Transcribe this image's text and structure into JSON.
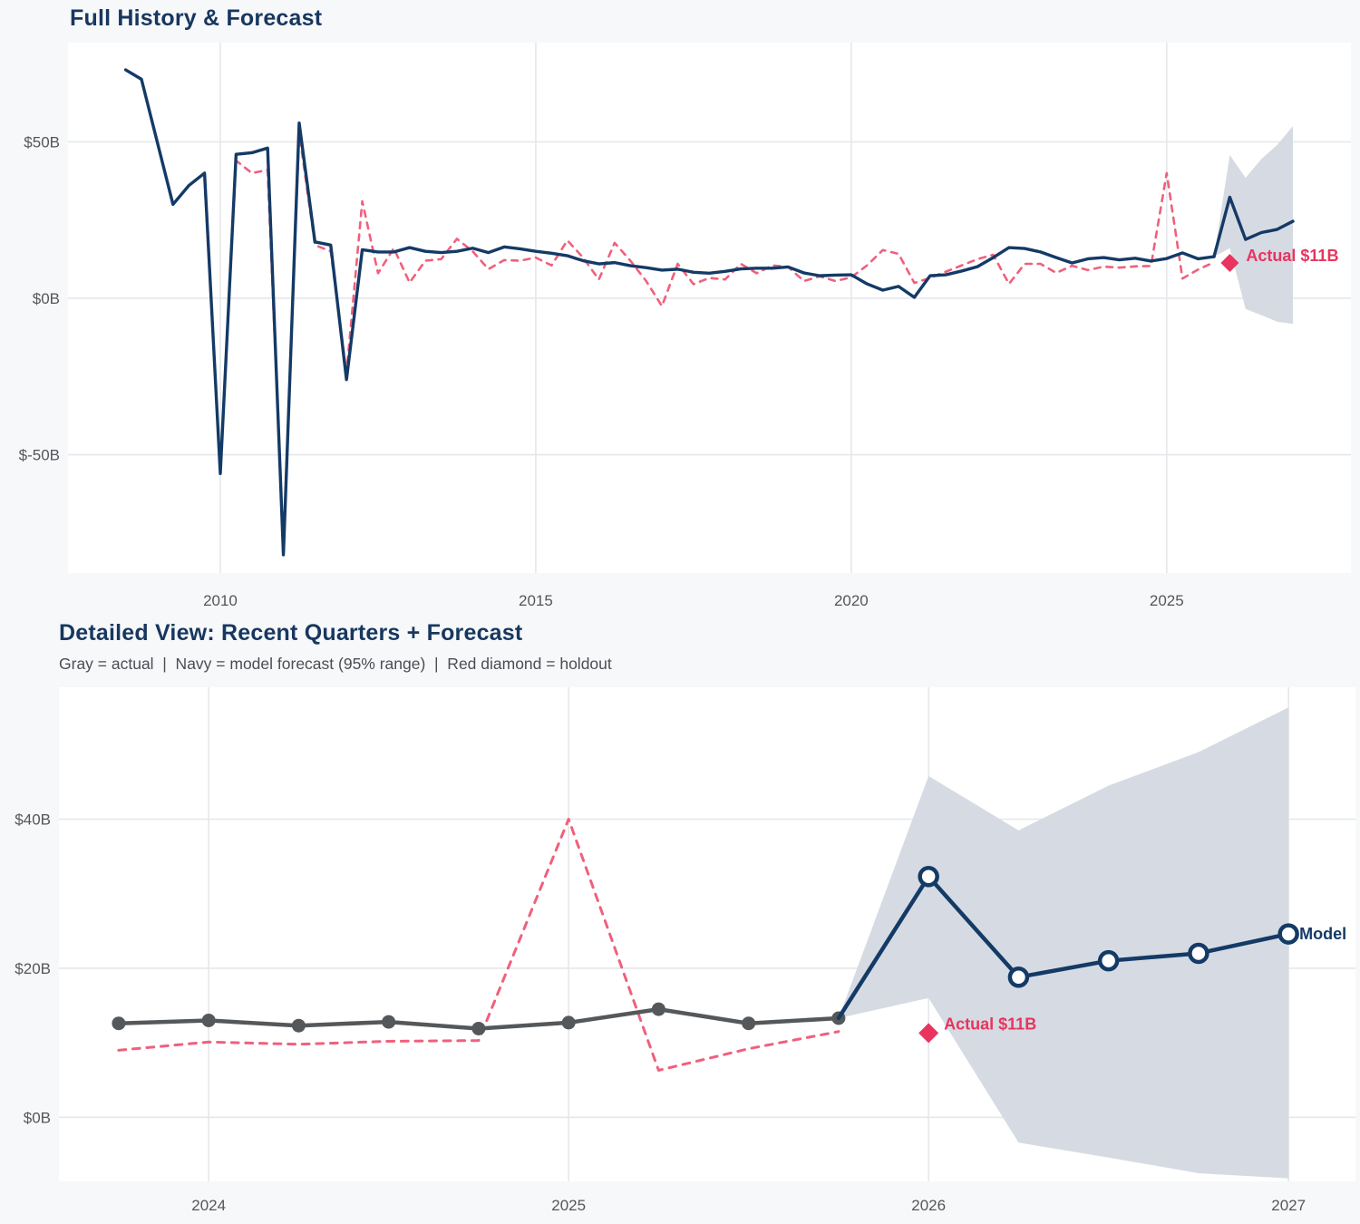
{
  "titles": {
    "top": "Full History & Forecast",
    "bottom": "Detailed View: Recent Quarters + Forecast",
    "bottom_subtitle": "Gray = actual  |  Navy = model forecast (95% range)  |  Red diamond = holdout"
  },
  "colors": {
    "navy": "#143a66",
    "title_navy": "#17375f",
    "pink": "#f0607c",
    "crimson": "#e8345e",
    "gray_line": "#55585a",
    "band": "#d6dbe3",
    "grid": "#e5e7ea",
    "tick": "#53575a",
    "plot_bg": "#ffffff",
    "page_bg": "#f7f8fa"
  },
  "chart_data": [
    {
      "id": "full_history",
      "type": "line",
      "title": "Full History & Forecast",
      "xlabel": "",
      "ylabel": "",
      "grid": true,
      "x_ticks": [
        {
          "label": "2010",
          "value": 2010
        },
        {
          "label": "2015",
          "value": 2015
        },
        {
          "label": "2020",
          "value": 2020
        },
        {
          "label": "2025",
          "value": 2025
        }
      ],
      "y_ticks": [
        {
          "label": "$50B",
          "value": 50
        },
        {
          "label": "$0B",
          "value": 0
        },
        {
          "label": "$-50B",
          "value": -50
        }
      ],
      "x_range": [
        2007.586,
        2027.92
      ],
      "y_range": [
        -87.8,
        81.7
      ],
      "band": {
        "name": "forecast-95-range",
        "x": [
          2025.75,
          2026.0,
          2026.25,
          2026.5,
          2026.75,
          2027.0
        ],
        "upper": [
          13.3,
          45.8,
          38.5,
          44.5,
          49.0,
          55.0
        ],
        "lower": [
          13.3,
          16.0,
          -3.4,
          -5.4,
          -7.5,
          -8.2
        ]
      },
      "series": [
        {
          "name": "backtest",
          "style": "dashed",
          "color_key": "pink",
          "width": 2.6,
          "x": [
            2009.75,
            2010.0,
            2010.25,
            2010.5,
            2010.75,
            2011.0,
            2011.25,
            2011.5,
            2011.75,
            2012.0,
            2012.25,
            2012.5,
            2012.75,
            2013.0,
            2013.25,
            2013.5,
            2013.75,
            2014.0,
            2014.25,
            2014.5,
            2014.75,
            2015.0,
            2015.25,
            2015.5,
            2015.75,
            2016.0,
            2016.25,
            2016.5,
            2016.75,
            2017.0,
            2017.25,
            2017.5,
            2017.75,
            2018.0,
            2018.25,
            2018.5,
            2018.75,
            2019.0,
            2019.25,
            2019.5,
            2019.75,
            2020.0,
            2020.25,
            2020.5,
            2020.75,
            2021.0,
            2021.25,
            2021.5,
            2021.75,
            2022.0,
            2022.25,
            2022.5,
            2022.75,
            2023.0,
            2023.25,
            2023.5,
            2023.75,
            2024.0,
            2024.25,
            2024.5,
            2024.75,
            2025.0,
            2025.25,
            2025.5,
            2025.75
          ],
          "y": [
            38,
            -55,
            44,
            40,
            41,
            -79,
            53,
            17,
            15,
            -24,
            31,
            8,
            16,
            5,
            12,
            12.5,
            19,
            15,
            9.3,
            12.2,
            12,
            13,
            10.5,
            18.5,
            13,
            6,
            17.7,
            12,
            5.5,
            -2.5,
            11,
            4.5,
            6.5,
            6,
            11,
            8,
            10.5,
            10,
            5.5,
            7,
            5.5,
            6.7,
            10.5,
            15.4,
            14.2,
            4.9,
            6.5,
            8.5,
            10.5,
            12.5,
            13.9,
            4.6,
            11,
            11,
            8.1,
            10.4,
            9,
            10.1,
            9.8,
            10.2,
            10.3,
            40,
            6.3,
            9.2,
            11.5
          ]
        },
        {
          "name": "actual",
          "style": "solid",
          "color_key": "navy",
          "width": 3.4,
          "x": [
            2008.5,
            2008.75,
            2009.0,
            2009.25,
            2009.5,
            2009.75,
            2010.0,
            2010.25,
            2010.5,
            2010.75,
            2011.0,
            2011.25,
            2011.5,
            2011.75,
            2012.0,
            2012.25,
            2012.5,
            2012.75,
            2013.0,
            2013.25,
            2013.5,
            2013.75,
            2014.0,
            2014.25,
            2014.5,
            2014.75,
            2015.0,
            2015.25,
            2015.5,
            2015.75,
            2016.0,
            2016.25,
            2016.5,
            2016.75,
            2017.0,
            2017.25,
            2017.5,
            2017.75,
            2018.0,
            2018.25,
            2018.5,
            2018.75,
            2019.0,
            2019.25,
            2019.5,
            2019.75,
            2020.0,
            2020.25,
            2020.5,
            2020.75,
            2021.0,
            2021.25,
            2021.5,
            2021.75,
            2022.0,
            2022.25,
            2022.5,
            2022.75,
            2023.0,
            2023.25,
            2023.5,
            2023.75,
            2024.0,
            2024.25,
            2024.5,
            2024.75,
            2025.0,
            2025.25,
            2025.5,
            2025.75
          ],
          "y": [
            73,
            70,
            50,
            30,
            36,
            40,
            -56,
            46,
            46.5,
            48,
            -82,
            56,
            18,
            17,
            -26,
            15.5,
            14.8,
            14.8,
            16.2,
            15,
            14.6,
            15,
            16,
            14.6,
            16.4,
            15.8,
            15,
            14.4,
            13.6,
            12,
            11,
            11.4,
            10.4,
            9.8,
            9,
            9.3,
            8.3,
            8,
            8.6,
            9.4,
            9.6,
            9.6,
            10,
            8.1,
            7.2,
            7.4,
            7.5,
            4.6,
            2.6,
            3.8,
            0.3,
            7.2,
            7.5,
            8.7,
            10.1,
            13,
            16.2,
            15.9,
            14.8,
            13,
            11.3,
            12.6,
            13,
            12.3,
            12.8,
            11.9,
            12.7,
            14.5,
            12.6,
            13.3
          ]
        },
        {
          "name": "forecast",
          "style": "solid",
          "color_key": "navy",
          "width": 3.4,
          "x": [
            2025.75,
            2026.0,
            2026.25,
            2026.5,
            2026.75,
            2027.0
          ],
          "y": [
            13.3,
            32.3,
            18.8,
            21.0,
            22.0,
            24.6
          ]
        }
      ],
      "holdout_point": {
        "x": 2026.0,
        "y": 11.3,
        "label": "Actual $11B",
        "color_key": "crimson",
        "size": 10
      },
      "annotations": []
    },
    {
      "id": "detailed_view",
      "type": "line",
      "title": "Detailed View: Recent Quarters + Forecast",
      "subtitle": "Gray = actual  |  Navy = model forecast (95% range)  |  Red diamond = holdout",
      "xlabel": "",
      "ylabel": "",
      "grid": true,
      "x_ticks": [
        {
          "label": "2024",
          "value": 2024
        },
        {
          "label": "2025",
          "value": 2025
        },
        {
          "label": "2026",
          "value": 2026
        },
        {
          "label": "2027",
          "value": 2027
        }
      ],
      "y_ticks": [
        {
          "label": "$0B",
          "value": 0
        },
        {
          "label": "$20B",
          "value": 20
        },
        {
          "label": "$40B",
          "value": 40
        }
      ],
      "x_range": [
        2023.584,
        2027.186
      ],
      "y_range": [
        -8.6,
        57.7
      ],
      "band": {
        "name": "forecast-95-range",
        "x": [
          2025.75,
          2026.0,
          2026.25,
          2026.5,
          2026.75,
          2027.0
        ],
        "upper": [
          13.3,
          45.8,
          38.5,
          44.5,
          49.0,
          55.0
        ],
        "lower": [
          13.3,
          16.0,
          -3.4,
          -5.4,
          -7.5,
          -8.2
        ]
      },
      "series": [
        {
          "name": "backtest",
          "style": "dashed",
          "color_key": "pink",
          "width": 3.0,
          "x": [
            2023.75,
            2024.0,
            2024.25,
            2024.5,
            2024.75,
            2025.0,
            2025.25,
            2025.5,
            2025.75
          ],
          "y": [
            9.0,
            10.1,
            9.8,
            10.2,
            10.3,
            40.0,
            6.3,
            9.2,
            11.5
          ]
        },
        {
          "name": "actual",
          "style": "solid",
          "color_key": "gray_line",
          "width": 4.5,
          "marker": "dot",
          "marker_r": 7.5,
          "x": [
            2023.75,
            2024.0,
            2024.25,
            2024.5,
            2024.75,
            2025.0,
            2025.25,
            2025.5,
            2025.75
          ],
          "y": [
            12.6,
            13.0,
            12.3,
            12.8,
            11.9,
            12.7,
            14.5,
            12.6,
            13.3
          ]
        },
        {
          "name": "model",
          "style": "solid",
          "color_key": "navy",
          "width": 4.5,
          "marker": "open-circle",
          "marker_r": 9.5,
          "marker_skip_first": true,
          "end_label": "Model",
          "x": [
            2025.75,
            2026.0,
            2026.25,
            2026.5,
            2026.75,
            2027.0
          ],
          "y": [
            13.3,
            32.3,
            18.8,
            21.0,
            22.0,
            24.6
          ]
        }
      ],
      "holdout_point": {
        "x": 2026.0,
        "y": 11.3,
        "label": "Actual $11B",
        "color_key": "crimson",
        "size": 11
      },
      "annotations": []
    }
  ]
}
